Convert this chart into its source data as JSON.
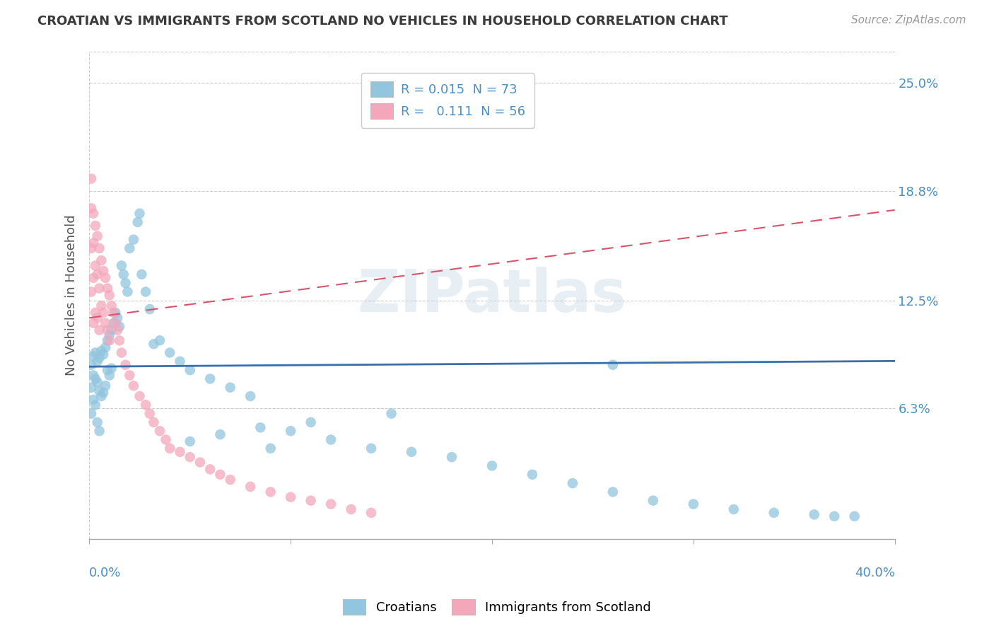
{
  "title": "CROATIAN VS IMMIGRANTS FROM SCOTLAND NO VEHICLES IN HOUSEHOLD CORRELATION CHART",
  "source": "Source: ZipAtlas.com",
  "ylabel": "No Vehicles in Household",
  "ytick_vals": [
    0.063,
    0.125,
    0.188,
    0.25
  ],
  "ytick_labels": [
    "6.3%",
    "12.5%",
    "18.8%",
    "25.0%"
  ],
  "xmin": 0.0,
  "xmax": 0.4,
  "ymin": -0.012,
  "ymax": 0.268,
  "legend_r1": "R = 0.015  N = 73",
  "legend_r2": "R =   0.111  N = 56",
  "watermark": "ZIPatlas",
  "blue_color": "#92c5de",
  "pink_color": "#f4a7bb",
  "blue_line_color": "#3a6fad",
  "pink_line_color": "#d9546a",
  "blue_text_color": "#4a90c4",
  "title_color": "#3a3a3a",
  "source_color": "#999999",
  "grid_color": "#cccccc",
  "blue_intercept": 0.087,
  "blue_slope": 0.008,
  "pink_intercept": 0.115,
  "pink_slope": 0.155,
  "cro_x": [
    0.001,
    0.001,
    0.001,
    0.002,
    0.002,
    0.002,
    0.003,
    0.003,
    0.003,
    0.004,
    0.004,
    0.004,
    0.005,
    0.005,
    0.005,
    0.006,
    0.006,
    0.007,
    0.007,
    0.008,
    0.008,
    0.009,
    0.009,
    0.01,
    0.01,
    0.011,
    0.011,
    0.012,
    0.013,
    0.014,
    0.015,
    0.016,
    0.017,
    0.018,
    0.019,
    0.02,
    0.022,
    0.024,
    0.025,
    0.026,
    0.028,
    0.03,
    0.032,
    0.035,
    0.04,
    0.045,
    0.05,
    0.06,
    0.07,
    0.08,
    0.09,
    0.1,
    0.12,
    0.14,
    0.16,
    0.18,
    0.2,
    0.22,
    0.24,
    0.26,
    0.28,
    0.3,
    0.32,
    0.34,
    0.36,
    0.37,
    0.38,
    0.26,
    0.15,
    0.11,
    0.085,
    0.065,
    0.05
  ],
  "cro_y": [
    0.088,
    0.075,
    0.06,
    0.093,
    0.082,
    0.068,
    0.095,
    0.08,
    0.065,
    0.09,
    0.078,
    0.055,
    0.092,
    0.073,
    0.05,
    0.096,
    0.07,
    0.094,
    0.072,
    0.098,
    0.076,
    0.102,
    0.085,
    0.105,
    0.082,
    0.108,
    0.086,
    0.112,
    0.118,
    0.115,
    0.11,
    0.145,
    0.14,
    0.135,
    0.13,
    0.155,
    0.16,
    0.17,
    0.175,
    0.14,
    0.13,
    0.12,
    0.1,
    0.102,
    0.095,
    0.09,
    0.085,
    0.08,
    0.075,
    0.07,
    0.04,
    0.05,
    0.045,
    0.04,
    0.038,
    0.035,
    0.03,
    0.025,
    0.02,
    0.015,
    0.01,
    0.008,
    0.005,
    0.003,
    0.002,
    0.001,
    0.001,
    0.088,
    0.06,
    0.055,
    0.052,
    0.048,
    0.044
  ],
  "sco_x": [
    0.001,
    0.001,
    0.001,
    0.001,
    0.002,
    0.002,
    0.002,
    0.002,
    0.003,
    0.003,
    0.003,
    0.004,
    0.004,
    0.004,
    0.005,
    0.005,
    0.005,
    0.006,
    0.006,
    0.007,
    0.007,
    0.008,
    0.008,
    0.009,
    0.009,
    0.01,
    0.01,
    0.011,
    0.012,
    0.013,
    0.014,
    0.015,
    0.016,
    0.018,
    0.02,
    0.022,
    0.025,
    0.028,
    0.03,
    0.032,
    0.035,
    0.038,
    0.04,
    0.045,
    0.05,
    0.055,
    0.06,
    0.065,
    0.07,
    0.08,
    0.09,
    0.1,
    0.11,
    0.12,
    0.13,
    0.14
  ],
  "sco_y": [
    0.195,
    0.178,
    0.155,
    0.13,
    0.175,
    0.158,
    0.138,
    0.112,
    0.168,
    0.145,
    0.118,
    0.162,
    0.14,
    0.115,
    0.155,
    0.132,
    0.108,
    0.148,
    0.122,
    0.142,
    0.118,
    0.138,
    0.112,
    0.132,
    0.108,
    0.128,
    0.102,
    0.122,
    0.118,
    0.112,
    0.108,
    0.102,
    0.095,
    0.088,
    0.082,
    0.076,
    0.07,
    0.065,
    0.06,
    0.055,
    0.05,
    0.045,
    0.04,
    0.038,
    0.035,
    0.032,
    0.028,
    0.025,
    0.022,
    0.018,
    0.015,
    0.012,
    0.01,
    0.008,
    0.005,
    0.003
  ]
}
